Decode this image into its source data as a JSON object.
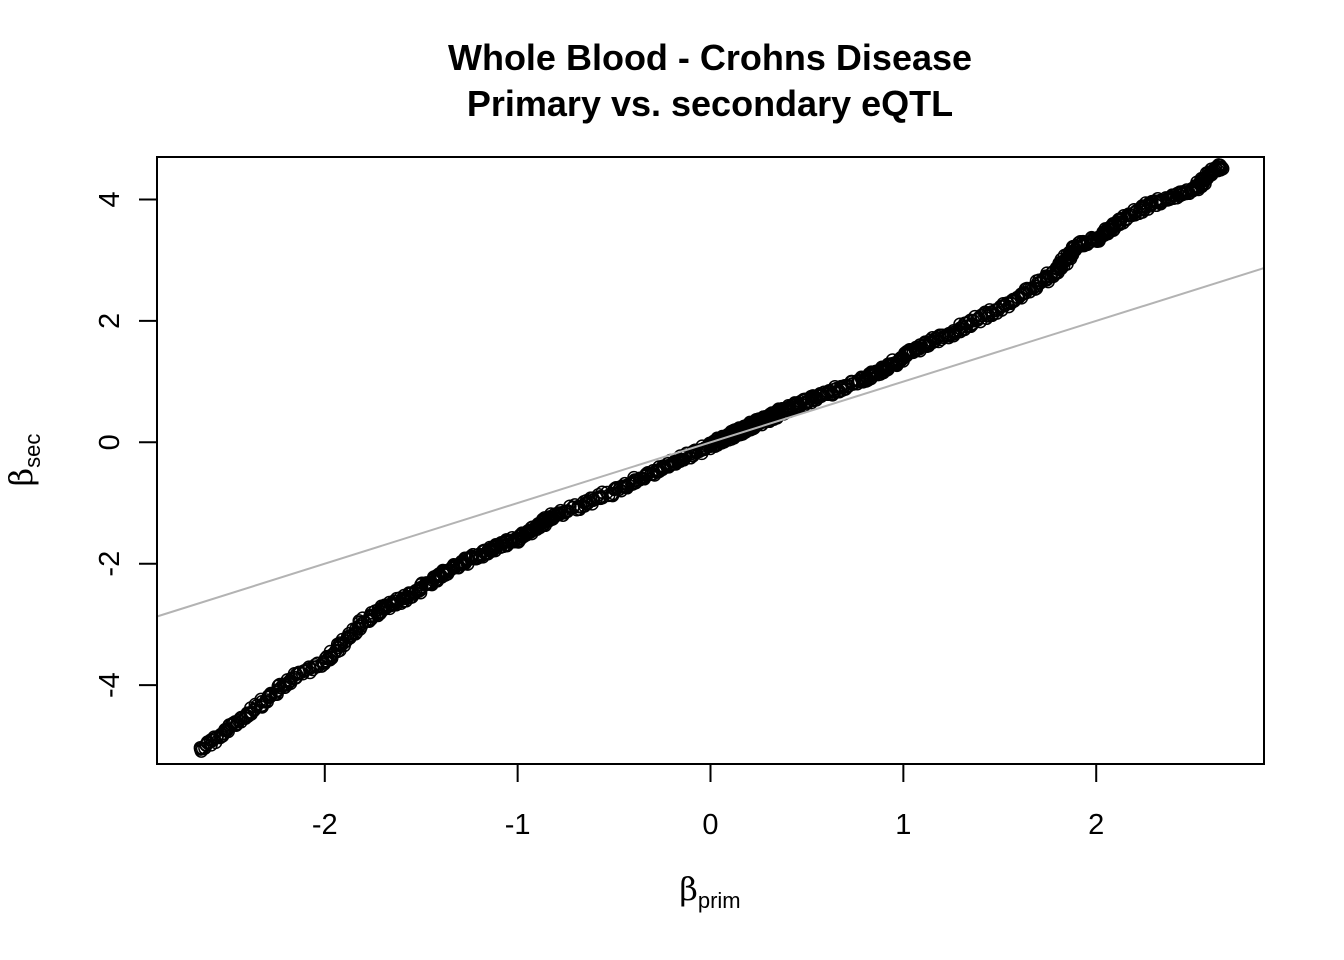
{
  "chart_data": {
    "type": "scatter",
    "title": "Whole Blood - Crohns Disease",
    "subtitle": "Primary vs. secondary eQTL",
    "xlabel": {
      "symbol": "β",
      "subscript": "prim"
    },
    "ylabel": {
      "symbol": "β",
      "subscript": "sec"
    },
    "xlim": [
      -2.87,
      2.87
    ],
    "ylim": [
      -5.3,
      4.7
    ],
    "xticks": [
      -2,
      -1,
      0,
      1,
      2
    ],
    "xtick_labels": [
      "-2",
      "-1",
      "0",
      "1",
      "2"
    ],
    "yticks": [
      -4,
      -2,
      0,
      2,
      4
    ],
    "ytick_labels": [
      "-4",
      "-2",
      "0",
      "2",
      "4"
    ],
    "grid": false,
    "marker": "open-circle",
    "marker_color": "#000000",
    "reference_line": {
      "slope": 1,
      "intercept": 0,
      "color": "#b3b3b3"
    },
    "curve_points": [
      [
        -2.65,
        -5.05
      ],
      [
        -2.55,
        -4.85
      ],
      [
        -2.45,
        -4.6
      ],
      [
        -2.35,
        -4.35
      ],
      [
        -2.25,
        -4.1
      ],
      [
        -2.15,
        -3.85
      ],
      [
        -2.0,
        -3.6
      ],
      [
        -1.9,
        -3.3
      ],
      [
        -1.8,
        -2.95
      ],
      [
        -1.7,
        -2.75
      ],
      [
        -1.6,
        -2.6
      ],
      [
        -1.5,
        -2.4
      ],
      [
        -1.4,
        -2.2
      ],
      [
        -1.3,
        -2.0
      ],
      [
        -1.2,
        -1.85
      ],
      [
        -1.1,
        -1.7
      ],
      [
        -1.0,
        -1.6
      ],
      [
        -0.9,
        -1.4
      ],
      [
        -0.8,
        -1.2
      ],
      [
        -0.6,
        -0.95
      ],
      [
        -0.4,
        -0.65
      ],
      [
        -0.2,
        -0.35
      ],
      [
        0.0,
        -0.05
      ],
      [
        0.1,
        0.1
      ],
      [
        0.2,
        0.25
      ],
      [
        0.3,
        0.4
      ],
      [
        0.4,
        0.55
      ],
      [
        0.6,
        0.8
      ],
      [
        0.8,
        1.05
      ],
      [
        0.9,
        1.2
      ],
      [
        1.0,
        1.4
      ],
      [
        1.1,
        1.6
      ],
      [
        1.25,
        1.8
      ],
      [
        1.4,
        2.05
      ],
      [
        1.55,
        2.3
      ],
      [
        1.7,
        2.6
      ],
      [
        1.8,
        2.85
      ],
      [
        1.85,
        3.05
      ],
      [
        1.9,
        3.25
      ],
      [
        2.0,
        3.35
      ],
      [
        2.05,
        3.45
      ],
      [
        2.1,
        3.6
      ],
      [
        2.2,
        3.8
      ],
      [
        2.3,
        3.95
      ],
      [
        2.4,
        4.05
      ],
      [
        2.5,
        4.15
      ],
      [
        2.55,
        4.3
      ],
      [
        2.6,
        4.48
      ],
      [
        2.65,
        4.55
      ]
    ],
    "n_points_drawn": 1400
  }
}
